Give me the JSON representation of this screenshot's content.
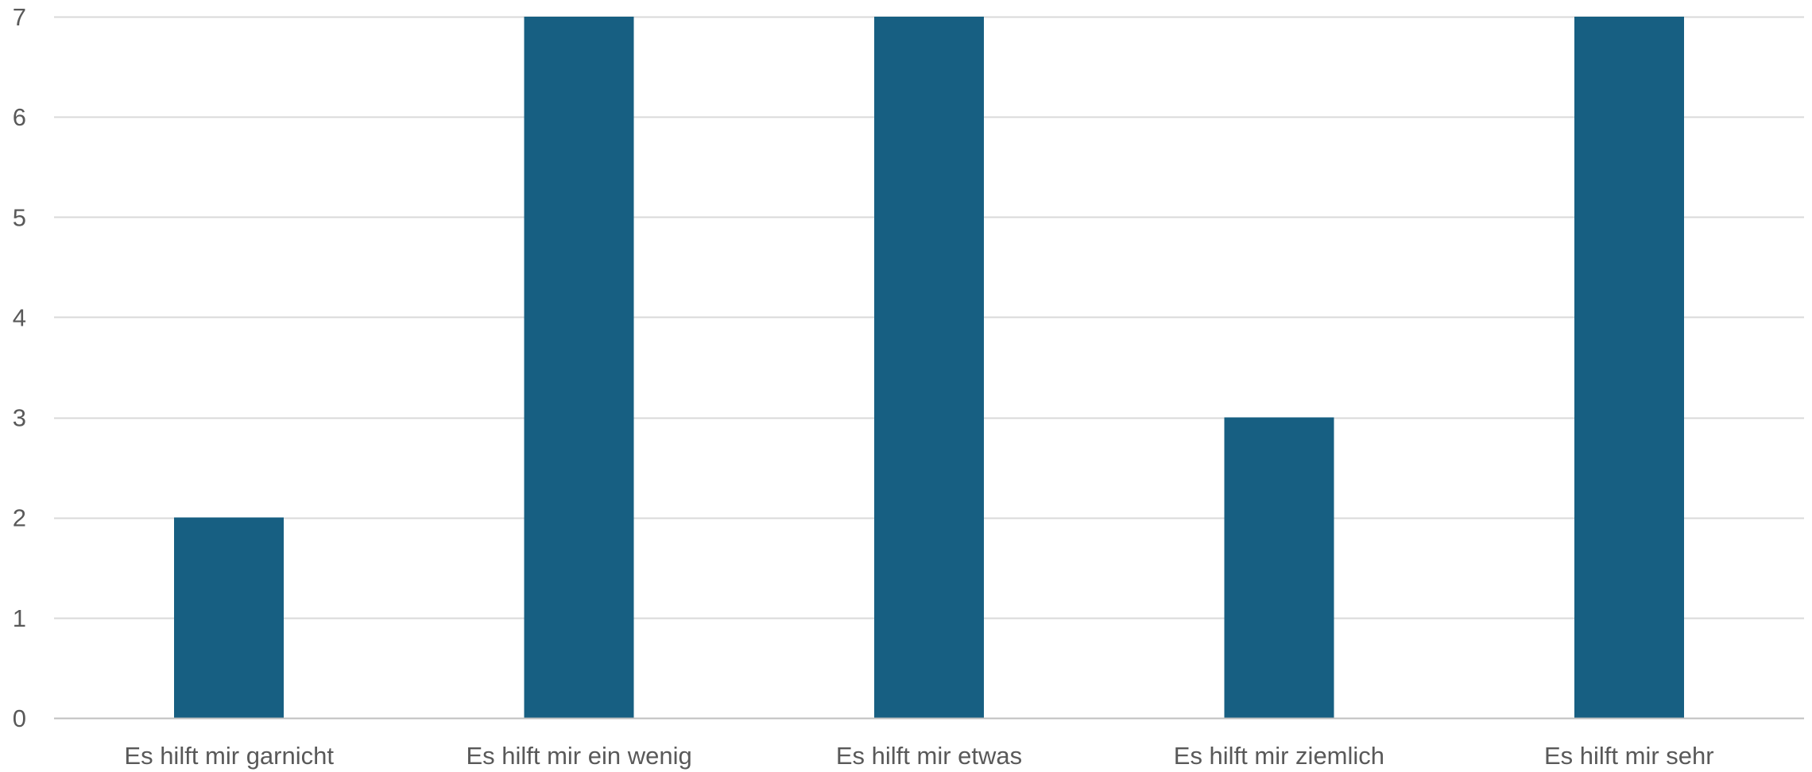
{
  "chart_data": {
    "type": "bar",
    "title": "",
    "xlabel": "",
    "ylabel": "",
    "categories": [
      "Es hilft mir garnicht",
      "Es hilft mir ein wenig",
      "Es hilft mir etwas",
      "Es hilft mir ziemlich",
      "Es hilft mir sehr"
    ],
    "values": [
      2,
      7,
      7,
      3,
      7
    ],
    "ylim": [
      0,
      7
    ],
    "yticks": [
      "0",
      "1",
      "2",
      "3",
      "4",
      "5",
      "6",
      "7"
    ],
    "grid": true,
    "legend": "none",
    "colors": {
      "bar": "#175f82",
      "grid": "#d9d9d9",
      "text": "#595959"
    }
  }
}
